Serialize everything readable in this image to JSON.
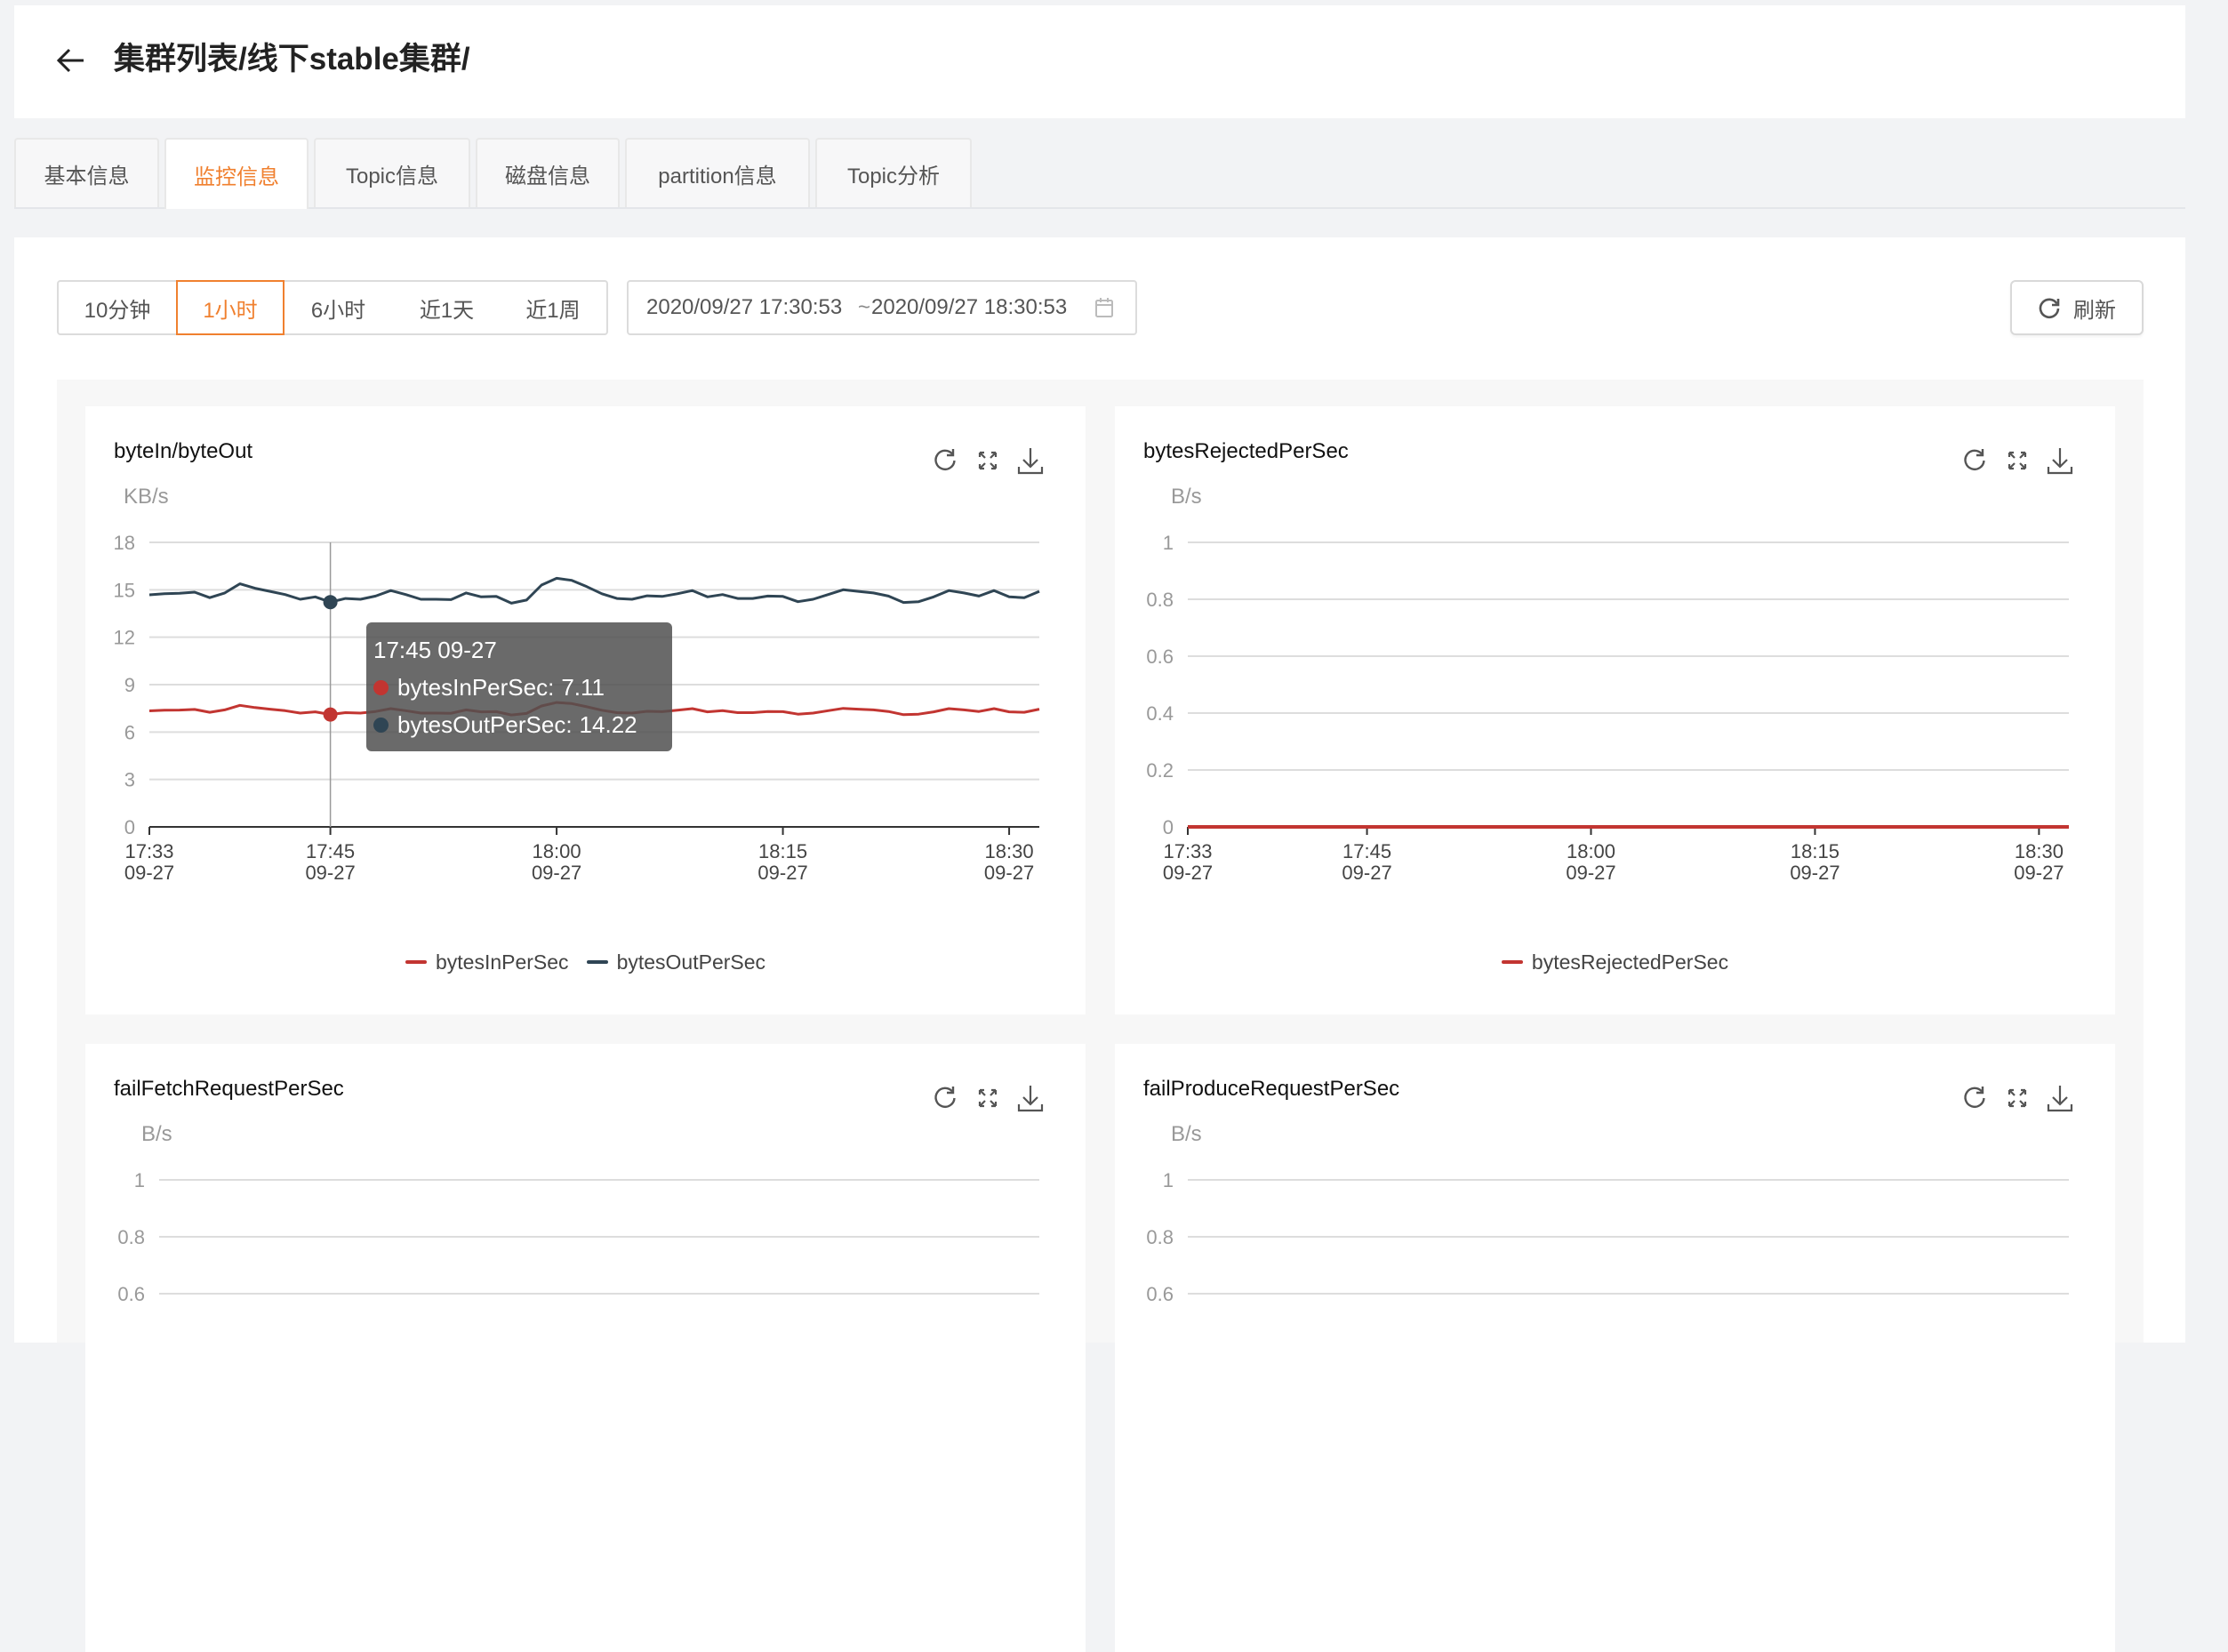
{
  "header": {
    "title": "集群列表/线下stable集群/"
  },
  "tabs": [
    {
      "label": "基本信息"
    },
    {
      "label": "监控信息",
      "active": true
    },
    {
      "label": "Topic信息"
    },
    {
      "label": "磁盘信息"
    },
    {
      "label": "partition信息"
    },
    {
      "label": "Topic分析"
    }
  ],
  "time_ranges": [
    {
      "label": "10分钟"
    },
    {
      "label": "1小时",
      "active": true
    },
    {
      "label": "6小时"
    },
    {
      "label": "近1天"
    },
    {
      "label": "近1周"
    }
  ],
  "date_range": {
    "start": "2020/09/27 17:30:53",
    "separator": "~",
    "end": "2020/09/27 18:30:53",
    "icon": "calendar-icon"
  },
  "refresh": {
    "label": "刷新",
    "icon": "refresh-icon"
  },
  "colors": {
    "accent": "#f0802f",
    "series_red": "#c23531",
    "series_dark": "#2f4554"
  },
  "chart_data": [
    {
      "type": "line",
      "title": "byteIn/byteOut",
      "ylabel": "KB/s",
      "xlim": [
        "17:33",
        "18:32"
      ],
      "ylim": [
        0,
        18
      ],
      "yticks": [
        "0",
        "3",
        "6",
        "9",
        "12",
        "15",
        "18"
      ],
      "xticks": [
        {
          "time": "17:33",
          "date": "09-27"
        },
        {
          "time": "17:45",
          "date": "09-27"
        },
        {
          "time": "18:00",
          "date": "09-27"
        },
        {
          "time": "18:15",
          "date": "09-27"
        },
        {
          "time": "18:30",
          "date": "09-27"
        }
      ],
      "grid": true,
      "legend": "bottom",
      "x": [
        "17:33",
        "17:34",
        "17:35",
        "17:36",
        "17:37",
        "17:38",
        "17:39",
        "17:40",
        "17:41",
        "17:42",
        "17:43",
        "17:44",
        "17:45",
        "17:46",
        "17:47",
        "17:48",
        "17:49",
        "17:50",
        "17:51",
        "17:52",
        "17:53",
        "17:54",
        "17:55",
        "17:56",
        "17:57",
        "17:58",
        "17:59",
        "18:00",
        "18:01",
        "18:02",
        "18:03",
        "18:04",
        "18:05",
        "18:06",
        "18:07",
        "18:08",
        "18:09",
        "18:10",
        "18:11",
        "18:12",
        "18:13",
        "18:14",
        "18:15",
        "18:16",
        "18:17",
        "18:18",
        "18:19",
        "18:20",
        "18:21",
        "18:22",
        "18:23",
        "18:24",
        "18:25",
        "18:26",
        "18:27",
        "18:28",
        "18:29",
        "18:30",
        "18:31",
        "18:32"
      ],
      "series": [
        {
          "name": "bytesInPerSec",
          "color": "#c23531",
          "values": [
            7.34,
            7.38,
            7.39,
            7.43,
            7.25,
            7.4,
            7.69,
            7.55,
            7.45,
            7.35,
            7.2,
            7.28,
            7.11,
            7.23,
            7.2,
            7.3,
            7.48,
            7.35,
            7.2,
            7.2,
            7.19,
            7.4,
            7.28,
            7.29,
            7.08,
            7.18,
            7.65,
            7.87,
            7.8,
            7.6,
            7.38,
            7.23,
            7.2,
            7.31,
            7.29,
            7.38,
            7.48,
            7.28,
            7.35,
            7.23,
            7.23,
            7.3,
            7.29,
            7.13,
            7.2,
            7.35,
            7.5,
            7.45,
            7.4,
            7.3,
            7.1,
            7.13,
            7.28,
            7.48,
            7.4,
            7.3,
            7.48,
            7.28,
            7.25,
            7.45
          ]
        },
        {
          "name": "bytesOutPerSec",
          "color": "#2f4554",
          "values": [
            14.68,
            14.75,
            14.78,
            14.85,
            14.5,
            14.8,
            15.38,
            15.1,
            14.9,
            14.7,
            14.4,
            14.55,
            14.22,
            14.45,
            14.4,
            14.6,
            14.95,
            14.7,
            14.4,
            14.4,
            14.38,
            14.8,
            14.55,
            14.58,
            14.15,
            14.35,
            15.3,
            15.73,
            15.6,
            15.2,
            14.75,
            14.45,
            14.4,
            14.62,
            14.58,
            14.75,
            14.95,
            14.55,
            14.7,
            14.45,
            14.45,
            14.6,
            14.58,
            14.25,
            14.4,
            14.7,
            15.0,
            14.9,
            14.8,
            14.6,
            14.2,
            14.25,
            14.55,
            14.95,
            14.8,
            14.6,
            14.95,
            14.55,
            14.5,
            14.9
          ]
        }
      ],
      "tooltip": {
        "x": "17:45",
        "title": "17:45 09-27",
        "items": [
          {
            "label": "bytesInPerSec: ",
            "value": "7.11",
            "color": "#c23531"
          },
          {
            "label": "bytesOutPerSec: ",
            "value": "14.22",
            "color": "#2f4554"
          }
        ]
      }
    },
    {
      "type": "line",
      "title": "bytesRejectedPerSec",
      "ylabel": "B/s",
      "xlim": [
        "17:33",
        "18:32"
      ],
      "ylim": [
        0,
        1
      ],
      "yticks": [
        "0",
        "0.2",
        "0.4",
        "0.6",
        "0.8",
        "1"
      ],
      "xticks": [
        {
          "time": "17:33",
          "date": "09-27"
        },
        {
          "time": "17:45",
          "date": "09-27"
        },
        {
          "time": "18:00",
          "date": "09-27"
        },
        {
          "time": "18:15",
          "date": "09-27"
        },
        {
          "time": "18:30",
          "date": "09-27"
        }
      ],
      "grid": true,
      "legend": "bottom",
      "x": [
        "17:33",
        "17:34",
        "17:35",
        "17:36",
        "17:37",
        "17:38",
        "17:39",
        "17:40",
        "17:41",
        "17:42",
        "17:43",
        "17:44",
        "17:45",
        "17:46",
        "17:47",
        "17:48",
        "17:49",
        "17:50",
        "17:51",
        "17:52",
        "17:53",
        "17:54",
        "17:55",
        "17:56",
        "17:57",
        "17:58",
        "17:59",
        "18:00",
        "18:01",
        "18:02",
        "18:03",
        "18:04",
        "18:05",
        "18:06",
        "18:07",
        "18:08",
        "18:09",
        "18:10",
        "18:11",
        "18:12",
        "18:13",
        "18:14",
        "18:15",
        "18:16",
        "18:17",
        "18:18",
        "18:19",
        "18:20",
        "18:21",
        "18:22",
        "18:23",
        "18:24",
        "18:25",
        "18:26",
        "18:27",
        "18:28",
        "18:29",
        "18:30",
        "18:31",
        "18:32"
      ],
      "series": [
        {
          "name": "bytesRejectedPerSec",
          "color": "#c23531",
          "values": [
            0,
            0,
            0,
            0,
            0,
            0,
            0,
            0,
            0,
            0,
            0,
            0,
            0,
            0,
            0,
            0,
            0,
            0,
            0,
            0,
            0,
            0,
            0,
            0,
            0,
            0,
            0,
            0,
            0,
            0,
            0,
            0,
            0,
            0,
            0,
            0,
            0,
            0,
            0,
            0,
            0,
            0,
            0,
            0,
            0,
            0,
            0,
            0,
            0,
            0,
            0,
            0,
            0,
            0,
            0,
            0,
            0,
            0,
            0,
            0
          ]
        }
      ]
    },
    {
      "type": "line",
      "title": "failFetchRequestPerSec",
      "ylabel": "B/s",
      "xlim": [
        "17:33",
        "18:32"
      ],
      "ylim": [
        0,
        1
      ],
      "yticks": [
        "0.6",
        "0.8",
        "1"
      ],
      "xticks": [],
      "grid": true,
      "series": []
    },
    {
      "type": "line",
      "title": "failProduceRequestPerSec",
      "ylabel": "B/s",
      "xlim": [
        "17:33",
        "18:32"
      ],
      "ylim": [
        0,
        1
      ],
      "yticks": [
        "0.6",
        "0.8",
        "1"
      ],
      "xticks": [],
      "grid": true,
      "series": []
    }
  ]
}
